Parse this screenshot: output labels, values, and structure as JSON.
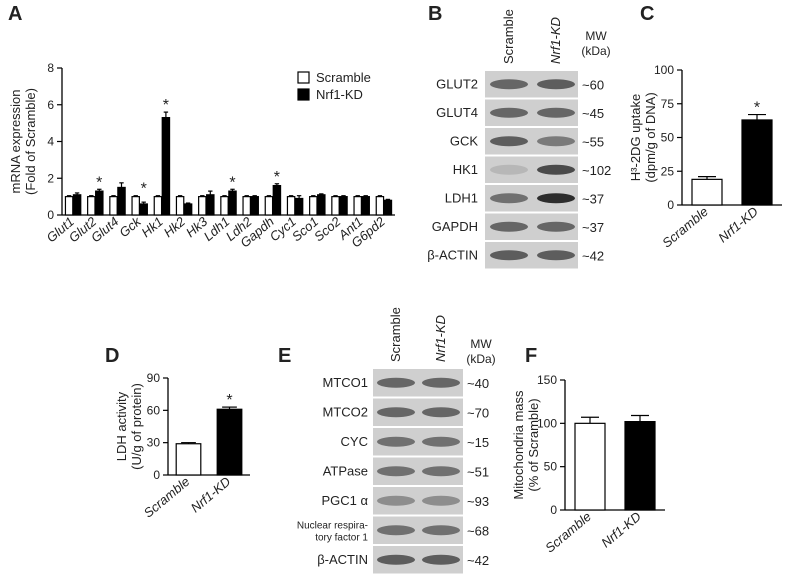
{
  "chart_data": [
    {
      "type": "bar",
      "label": "A",
      "y_label": [
        "mRNA expression",
        "(Fold of Scramble)"
      ],
      "categories": [
        "Glut1",
        "Glut2",
        "Glut4",
        "Gck",
        "Hk1",
        "Hk2",
        "Hk3",
        "Ldh1",
        "Ldh2",
        "Gapdh",
        "Cyc1",
        "Sco1",
        "Sco2",
        "Ant1",
        "G6pd2"
      ],
      "series": [
        {
          "name": "Scramble",
          "color": "#ffffff",
          "values": [
            1,
            1,
            1,
            1,
            1,
            1,
            1,
            1,
            1,
            1,
            1,
            1,
            1,
            1,
            1
          ],
          "errors": [
            0.05,
            0.05,
            0.05,
            0.05,
            0.05,
            0.05,
            0.05,
            0.05,
            0.05,
            0.05,
            0.05,
            0.05,
            0.05,
            0.05,
            0.05
          ]
        },
        {
          "name": "Nrf1-KD",
          "color": "#000000",
          "values": [
            1.1,
            1.3,
            1.5,
            0.6,
            5.3,
            0.6,
            1.1,
            1.3,
            1.0,
            1.6,
            0.9,
            1.1,
            1.0,
            1.0,
            0.8
          ],
          "errors": [
            0.1,
            0.1,
            0.25,
            0.1,
            0.3,
            0.05,
            0.2,
            0.1,
            0.05,
            0.1,
            0.15,
            0.05,
            0.05,
            0.05,
            0.05
          ]
        }
      ],
      "annotations": [
        {
          "text": "*",
          "category": "Glut2"
        },
        {
          "text": "*",
          "category": "Gck"
        },
        {
          "text": "*",
          "category": "Hk1"
        },
        {
          "text": "*",
          "category": "Ldh1"
        },
        {
          "text": "*",
          "category": "Gapdh"
        }
      ],
      "ylim": [
        0,
        8
      ],
      "yticks": [
        0,
        2,
        4,
        6,
        8
      ],
      "legend": "top-right"
    },
    {
      "type": "bar",
      "label": "C",
      "y_label": [
        "H³-2DG uptake",
        "(dpm/g of DNA)"
      ],
      "categories": [
        "Scramble",
        "Nrf1-KD"
      ],
      "values": [
        19,
        63
      ],
      "errors": [
        2,
        4
      ],
      "colors": [
        "#ffffff",
        "#000000"
      ],
      "annotations": [
        {
          "text": "*",
          "category": "Nrf1-KD"
        }
      ],
      "ylim": [
        0,
        100
      ],
      "yticks": [
        0,
        25,
        50,
        75,
        100
      ]
    },
    {
      "type": "bar",
      "label": "D",
      "y_label": [
        "LDH activity",
        "(U/g of protein)"
      ],
      "categories": [
        "Scramble",
        "Nrf1-KD"
      ],
      "values": [
        29,
        61
      ],
      "errors": [
        1,
        2
      ],
      "colors": [
        "#ffffff",
        "#000000"
      ],
      "annotations": [
        {
          "text": "*",
          "category": "Nrf1-KD"
        }
      ],
      "ylim": [
        0,
        90
      ],
      "yticks": [
        0,
        30,
        60,
        90
      ]
    },
    {
      "type": "bar",
      "label": "F",
      "y_label": [
        "Mitochondria mass",
        "(% of Scramble)"
      ],
      "categories": [
        "Scramble",
        "Nrf1-KD"
      ],
      "values": [
        100,
        102
      ],
      "errors": [
        7,
        7
      ],
      "colors": [
        "#ffffff",
        "#000000"
      ],
      "annotations": [],
      "ylim": [
        0,
        150
      ],
      "yticks": [
        0,
        50,
        100,
        150
      ]
    }
  ],
  "blots": [
    {
      "label": "B",
      "columns": [
        "Scramble",
        "Nrf1-KD"
      ],
      "mw_header": [
        "MW",
        "(kDa)"
      ],
      "rows": [
        {
          "protein": [
            "GLUT2"
          ],
          "mw": "~60"
        },
        {
          "protein": [
            "GLUT4"
          ],
          "mw": "~45"
        },
        {
          "protein": [
            "GCK"
          ],
          "mw": "~55"
        },
        {
          "protein": [
            "HK1"
          ],
          "mw": "~102"
        },
        {
          "protein": [
            "LDH1"
          ],
          "mw": "~37"
        },
        {
          "protein": [
            "GAPDH"
          ],
          "mw": "~37"
        },
        {
          "protein": [
            "β-ACTIN"
          ],
          "mw": "~42"
        }
      ]
    },
    {
      "label": "E",
      "columns": [
        "Scramble",
        "Nrf1-KD"
      ],
      "mw_header": [
        "MW",
        "(kDa)"
      ],
      "rows": [
        {
          "protein": [
            "MTCO1"
          ],
          "mw": "~40"
        },
        {
          "protein": [
            "MTCO2"
          ],
          "mw": "~70"
        },
        {
          "protein": [
            "CYC"
          ],
          "mw": "~15"
        },
        {
          "protein": [
            "ATPase"
          ],
          "mw": "~51"
        },
        {
          "protein": [
            "PGC1 α"
          ],
          "mw": "~93"
        },
        {
          "protein": [
            "Nuclear respira-",
            "tory factor 1"
          ],
          "mw": "~68"
        },
        {
          "protein": [
            "β-ACTIN"
          ],
          "mw": "~42"
        }
      ]
    }
  ]
}
